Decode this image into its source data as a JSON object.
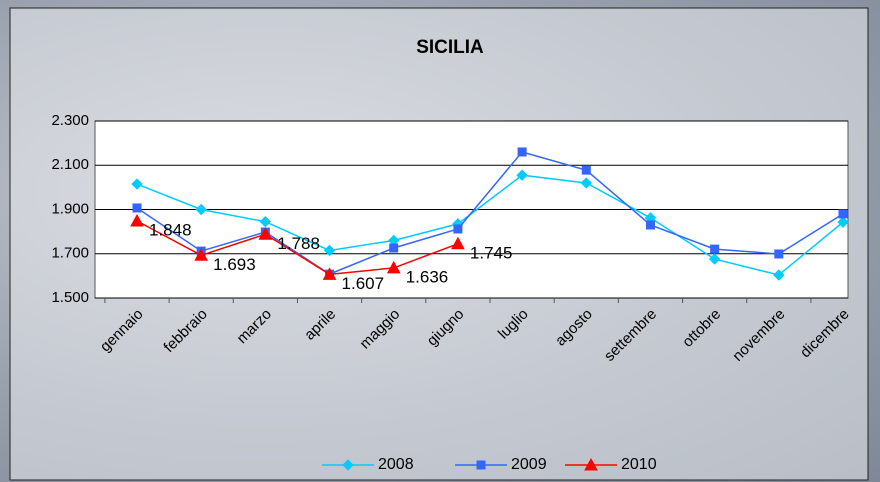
{
  "chart_data": {
    "type": "line",
    "title": "SICILIA",
    "categories": [
      "gennaio",
      "febbraio",
      "marzo",
      "aprile",
      "maggio",
      "giugno",
      "luglio",
      "agosto",
      "settembre",
      "ottobre",
      "novembre",
      "dicembre"
    ],
    "series": [
      {
        "name": "2008",
        "color": "#00ccff",
        "marker": "diamond",
        "values": [
          2015,
          1900,
          1845,
          1715,
          1760,
          1835,
          2055,
          2020,
          1862,
          1676,
          1604,
          1843
        ]
      },
      {
        "name": "2009",
        "color": "#3366ff",
        "marker": "square",
        "values": [
          1907,
          1712,
          1798,
          1608,
          1726,
          1812,
          2160,
          2078,
          1830,
          1721,
          1699,
          1880
        ]
      },
      {
        "name": "2010",
        "color": "#ff0000",
        "marker": "triangle",
        "values": [
          1848,
          1693,
          1788,
          1607,
          1636,
          1745,
          null,
          null,
          null,
          null,
          null,
          null
        ],
        "value_labels": [
          "1.848",
          "1.693",
          "1.788",
          "1.607",
          "1.636",
          "1.745",
          null,
          null,
          null,
          null,
          null,
          null
        ]
      }
    ],
    "ylim": [
      1500,
      2300
    ],
    "yticks": [
      {
        "value": 1500,
        "label": "1.500"
      },
      {
        "value": 1700,
        "label": "1.700"
      },
      {
        "value": 1900,
        "label": "1.900"
      },
      {
        "value": 2100,
        "label": "2.100"
      },
      {
        "value": 2300,
        "label": "2.300"
      }
    ],
    "grid": true,
    "legend": "bottom"
  }
}
